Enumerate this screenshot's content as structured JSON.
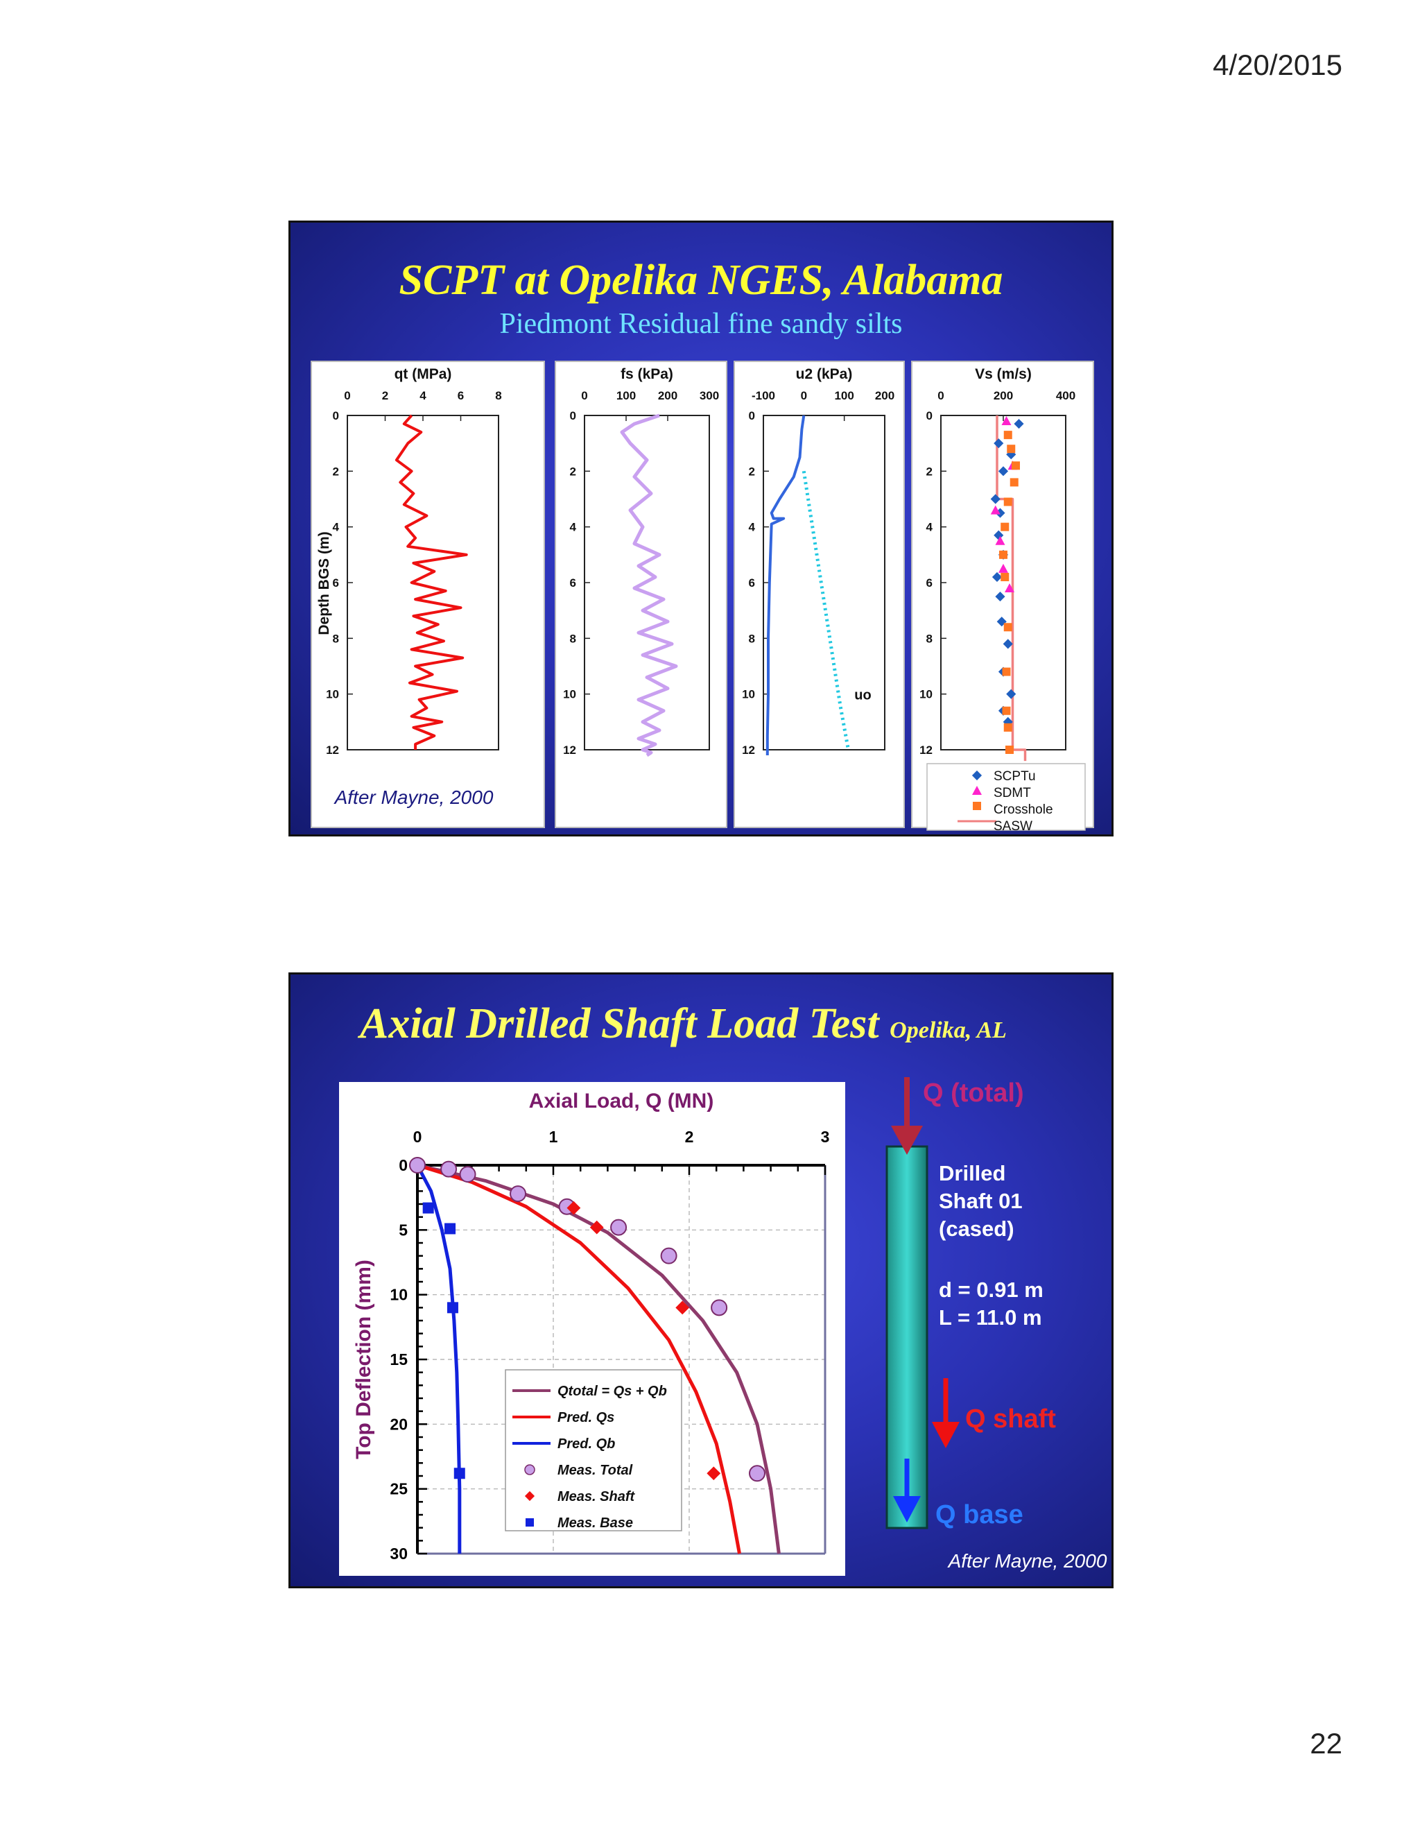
{
  "page": {
    "date": "4/20/2015",
    "number": "22"
  },
  "slide1": {
    "title": "SCPT at Opelika NGES, Alabama",
    "subtitle": "Piedmont Residual fine sandy silts",
    "credit": "After Mayne, 2000",
    "ylabel": "Depth BGS (m)",
    "depth_ticks": [
      "0",
      "2",
      "4",
      "6",
      "8",
      "10",
      "12"
    ],
    "panels": [
      {
        "title": "qt (MPa)",
        "ticks": [
          "0",
          "2",
          "4",
          "6",
          "8"
        ]
      },
      {
        "title": "fs (kPa)",
        "ticks": [
          "0",
          "100",
          "200",
          "300"
        ]
      },
      {
        "title": "u2 (kPa)",
        "ticks": [
          "-100",
          "0",
          "100",
          "200"
        ],
        "annotation": "uo"
      },
      {
        "title": "Vs (m/s)",
        "ticks": [
          "0",
          "200",
          "400"
        ]
      }
    ],
    "legend": [
      "SCPTu",
      "SDMT",
      "Crosshole",
      "SASW"
    ],
    "colors": {
      "qt": "#ee1111",
      "fs": "#c9a0f0",
      "u2": "#3366dd",
      "uo": "#22c8e0",
      "scptu": "#1f5fbf",
      "sdmt": "#ff22cc",
      "crosshole": "#ff7722",
      "sasw": "#f08080"
    }
  },
  "slide2": {
    "title": "Axial Drilled Shaft Load Test",
    "title_small": "Opelika, AL",
    "credit": "After Mayne, 2000",
    "shaft_label": [
      "Drilled",
      "Shaft 01",
      "(cased)"
    ],
    "shaft_dims": [
      "d = 0.91 m",
      "L = 11.0 m"
    ],
    "q_total": "Q (total)",
    "q_shaft": "Q shaft",
    "q_base": "Q base"
  },
  "chart_data": [
    {
      "type": "line",
      "title": "",
      "xlabel": "qt (MPa)",
      "ylabel": "Depth BGS (m)",
      "xlim": [
        0,
        8
      ],
      "ylim": [
        12,
        0
      ],
      "series": [
        {
          "name": "",
          "x": [
            3.4,
            3.0,
            3.9,
            3.2,
            2.6,
            3.4,
            2.8,
            3.5,
            3.0,
            4.2,
            3.1,
            3.6,
            3.2,
            6.3,
            3.5,
            4.6,
            3.4,
            5.2,
            3.6,
            6.0,
            3.5,
            4.8,
            3.7,
            5.1,
            3.4,
            6.1,
            3.6,
            4.5,
            3.3,
            5.8,
            3.8,
            4.2,
            3.4,
            5.0,
            3.5,
            4.6,
            3.6,
            3.6
          ],
          "y": [
            0.0,
            0.3,
            0.6,
            1.0,
            1.6,
            2.0,
            2.4,
            2.8,
            3.2,
            3.6,
            4.0,
            4.4,
            4.7,
            5.0,
            5.3,
            5.6,
            6.0,
            6.3,
            6.6,
            6.9,
            7.2,
            7.5,
            7.8,
            8.1,
            8.4,
            8.7,
            9.0,
            9.3,
            9.6,
            9.9,
            10.2,
            10.5,
            10.8,
            11.0,
            11.2,
            11.5,
            11.8,
            12.0
          ]
        }
      ]
    },
    {
      "type": "line",
      "title": "",
      "xlabel": "fs (kPa)",
      "ylabel": "Depth BGS (m)",
      "xlim": [
        0,
        300
      ],
      "ylim": [
        12,
        0
      ],
      "series": [
        {
          "name": "",
          "x": [
            180,
            120,
            90,
            110,
            150,
            120,
            160,
            110,
            140,
            120,
            180,
            130,
            170,
            120,
            190,
            140,
            200,
            130,
            210,
            140,
            220,
            150,
            200,
            130,
            190,
            140,
            180,
            130,
            170,
            140,
            160,
            150
          ],
          "y": [
            0.0,
            0.3,
            0.6,
            1.0,
            1.6,
            2.2,
            2.8,
            3.4,
            4.0,
            4.6,
            5.0,
            5.4,
            5.8,
            6.2,
            6.6,
            7.0,
            7.4,
            7.8,
            8.2,
            8.6,
            9.0,
            9.4,
            9.8,
            10.2,
            10.6,
            11.0,
            11.3,
            11.6,
            11.8,
            12.0,
            12.1,
            12.2
          ]
        }
      ]
    },
    {
      "type": "line",
      "title": "",
      "xlabel": "u2 (kPa)",
      "ylabel": "Depth BGS (m)",
      "xlim": [
        -100,
        200
      ],
      "ylim": [
        12,
        0
      ],
      "series": [
        {
          "name": "",
          "x": [
            0,
            -5,
            -10,
            -25,
            -60,
            -80,
            -75,
            -50,
            -80,
            -85,
            -88,
            -88,
            -90,
            -90
          ],
          "y": [
            0.0,
            0.5,
            1.5,
            2.2,
            3.0,
            3.5,
            3.7,
            3.7,
            3.9,
            6.0,
            8.0,
            10.0,
            11.5,
            12.2
          ]
        },
        {
          "name": "uo",
          "x": [
            0,
            30,
            60,
            90,
            110
          ],
          "y": [
            2.0,
            4.8,
            7.6,
            10.4,
            12.0
          ]
        }
      ]
    },
    {
      "type": "scatter",
      "title": "",
      "xlabel": "Vs (m/s)",
      "ylabel": "Depth BGS (m)",
      "xlim": [
        0,
        400
      ],
      "ylim": [
        12,
        0
      ],
      "series": [
        {
          "name": "SCPTu",
          "x": [
            250,
            185,
            225,
            200,
            175,
            190,
            185,
            200,
            180,
            190,
            195,
            215,
            200,
            225,
            200,
            215
          ],
          "y": [
            0.3,
            1.0,
            1.4,
            2.0,
            3.0,
            3.5,
            4.3,
            5.0,
            5.8,
            6.5,
            7.4,
            8.2,
            9.2,
            10.0,
            10.6,
            11.0
          ]
        },
        {
          "name": "SDMT",
          "x": [
            210,
            230,
            175,
            190,
            200,
            220
          ],
          "y": [
            0.2,
            1.8,
            3.4,
            4.5,
            5.5,
            6.2
          ]
        },
        {
          "name": "Crosshole",
          "x": [
            215,
            225,
            240,
            235,
            215,
            205,
            200,
            205,
            215,
            210,
            210,
            215,
            220
          ],
          "y": [
            0.7,
            1.2,
            1.8,
            2.4,
            3.1,
            4.0,
            5.0,
            5.8,
            7.6,
            9.2,
            10.6,
            11.2,
            12.0
          ]
        },
        {
          "name": "SASW",
          "x": [
            180,
            180,
            230,
            230,
            270,
            270
          ],
          "y": [
            0.0,
            3.0,
            3.0,
            12.0,
            12.0,
            12.4
          ]
        }
      ]
    },
    {
      "type": "line",
      "title": "",
      "xlabel": "Axial Load, Q (MN)",
      "ylabel": "Top Deflection (mm)",
      "xlim": [
        0,
        3
      ],
      "ylim": [
        30,
        0
      ],
      "series": [
        {
          "name": "Qtotal = Qs + Qb",
          "x": [
            0,
            0.5,
            1.0,
            1.4,
            1.8,
            2.1,
            2.35,
            2.5,
            2.6,
            2.66
          ],
          "y": [
            0,
            1.2,
            3.0,
            5.2,
            8.5,
            12.0,
            16.0,
            20.0,
            25.0,
            30.0
          ]
        },
        {
          "name": "Pred. Qs",
          "x": [
            0,
            0.4,
            0.8,
            1.2,
            1.55,
            1.85,
            2.05,
            2.2,
            2.3,
            2.37
          ],
          "y": [
            0,
            1.3,
            3.2,
            6.0,
            9.5,
            13.5,
            17.5,
            21.5,
            26.0,
            30.0
          ]
        },
        {
          "name": "Pred. Qb",
          "x": [
            0,
            0.1,
            0.18,
            0.24,
            0.27,
            0.29,
            0.3,
            0.31,
            0.31
          ],
          "y": [
            0,
            2.0,
            5.0,
            8.0,
            12.0,
            16.0,
            20.0,
            25.0,
            30.0
          ]
        },
        {
          "name": "Meas. Total",
          "x": [
            0.0,
            0.23,
            0.37,
            0.74,
            1.1,
            1.48,
            1.85,
            2.22,
            2.5
          ],
          "y": [
            0.0,
            0.3,
            0.7,
            2.2,
            3.2,
            4.8,
            7.0,
            11.0,
            23.8
          ]
        },
        {
          "name": "Meas. Shaft",
          "x": [
            1.15,
            1.32,
            1.95,
            2.18
          ],
          "y": [
            3.3,
            4.8,
            11.0,
            23.8
          ]
        },
        {
          "name": "Meas. Base",
          "x": [
            0.08,
            0.24,
            0.26,
            0.31
          ],
          "y": [
            3.3,
            4.9,
            11.0,
            23.8
          ]
        }
      ]
    }
  ]
}
